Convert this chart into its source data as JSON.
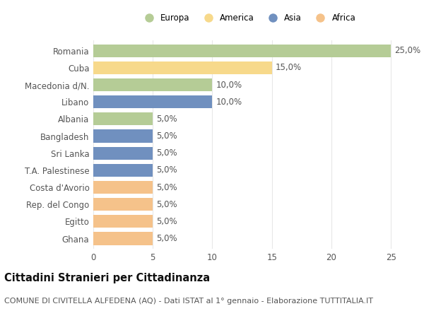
{
  "countries": [
    "Romania",
    "Cuba",
    "Macedonia d/N.",
    "Libano",
    "Albania",
    "Bangladesh",
    "Sri Lanka",
    "T.A. Palestinese",
    "Costa d'Avorio",
    "Rep. del Congo",
    "Egitto",
    "Ghana"
  ],
  "values": [
    25.0,
    15.0,
    10.0,
    10.0,
    5.0,
    5.0,
    5.0,
    5.0,
    5.0,
    5.0,
    5.0,
    5.0
  ],
  "continents": [
    "Europa",
    "America",
    "Europa",
    "Asia",
    "Europa",
    "Asia",
    "Asia",
    "Asia",
    "Africa",
    "Africa",
    "Africa",
    "Africa"
  ],
  "colors": {
    "Europa": "#b5cc96",
    "America": "#f7d98b",
    "Asia": "#7090bf",
    "Africa": "#f5c28a"
  },
  "legend_order": [
    "Europa",
    "America",
    "Asia",
    "Africa"
  ],
  "title": "Cittadini Stranieri per Cittadinanza",
  "subtitle": "COMUNE DI CIVITELLA ALFEDENA (AQ) - Dati ISTAT al 1° gennaio - Elaborazione TUTTITALIA.IT",
  "xlim": [
    0,
    26
  ],
  "xticks": [
    0,
    5,
    10,
    15,
    20,
    25
  ],
  "bar_height": 0.75,
  "background_color": "#ffffff",
  "plot_bg_color": "#ffffff",
  "grid_color": "#e8e8e8",
  "label_fontsize": 8.5,
  "tick_fontsize": 8.5,
  "title_fontsize": 10.5,
  "subtitle_fontsize": 8.0
}
